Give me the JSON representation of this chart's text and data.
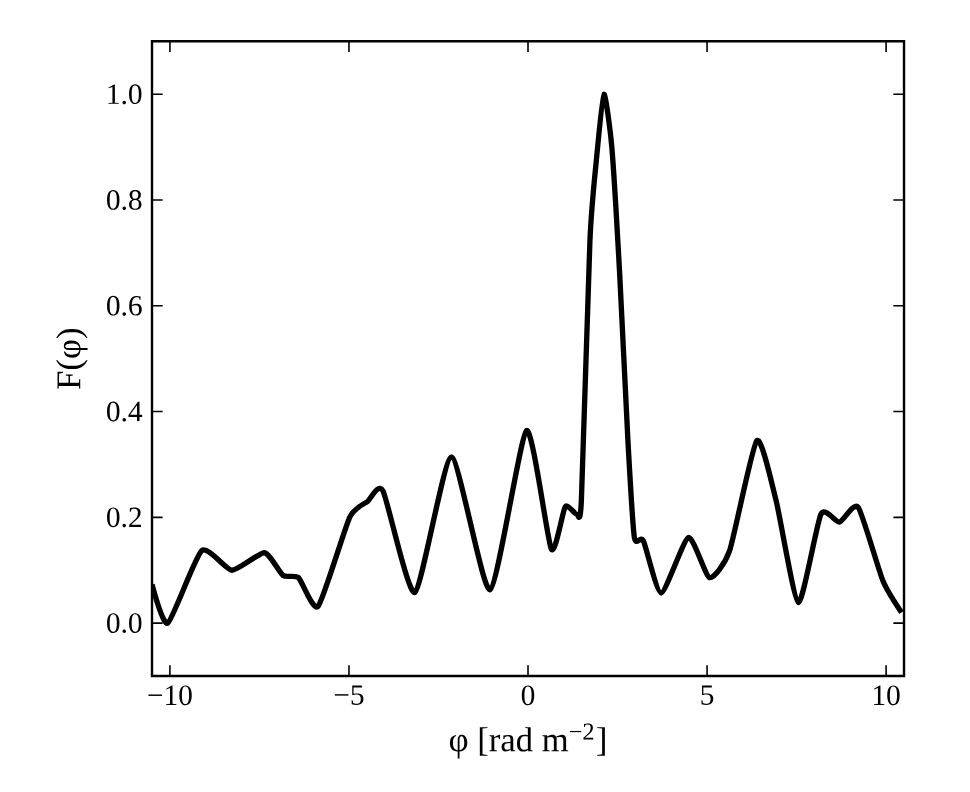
{
  "chart_data": {
    "type": "line",
    "xlabel": "φ [rad m$^{−2}$]",
    "ylabel": "F(φ)",
    "x": [
      -10.5,
      -10.06,
      -9.11,
      -8.27,
      -7.36,
      -6.84,
      -6.41,
      -5.86,
      -4.98,
      -4.48,
      -4.05,
      -3.16,
      -2.14,
      -1.06,
      -0.04,
      0.65,
      1.04,
      1.36,
      1.49,
      1.73,
      1.91,
      2.12,
      2.34,
      2.56,
      2.79,
      2.97,
      3.22,
      3.72,
      4.48,
      5.07,
      5.63,
      6.39,
      6.93,
      7.55,
      8.18,
      8.7,
      9.22,
      9.91,
      10.43
    ],
    "series": [
      {
        "color": "#000000",
        "values": [
          0.073,
          0.0,
          0.137,
          0.1,
          0.133,
          0.09,
          0.086,
          0.032,
          0.2,
          0.23,
          0.25,
          0.058,
          0.314,
          0.063,
          0.364,
          0.14,
          0.22,
          0.206,
          0.231,
          0.724,
          0.876,
          1.0,
          0.9,
          0.66,
          0.345,
          0.162,
          0.156,
          0.057,
          0.162,
          0.086,
          0.137,
          0.345,
          0.231,
          0.039,
          0.206,
          0.191,
          0.219,
          0.08,
          0.02
        ]
      }
    ],
    "xlim": [
      -10.5,
      10.5
    ],
    "ylim": [
      -0.1,
      1.1
    ],
    "xticks": [
      {
        "value": -10,
        "label": "−10"
      },
      {
        "value": -5,
        "label": "−5"
      },
      0,
      5,
      10
    ],
    "yticks": [
      {
        "value": 0,
        "label": "0.0"
      },
      {
        "value": 0.2,
        "label": "0.2"
      },
      {
        "value": 0.4,
        "label": "0.4"
      },
      {
        "value": 0.6,
        "label": "0.6"
      },
      {
        "value": 0.8,
        "label": "0.8"
      },
      {
        "value": 1.0,
        "label": "1.0"
      }
    ],
    "marker": "none",
    "line_style": "solid"
  }
}
